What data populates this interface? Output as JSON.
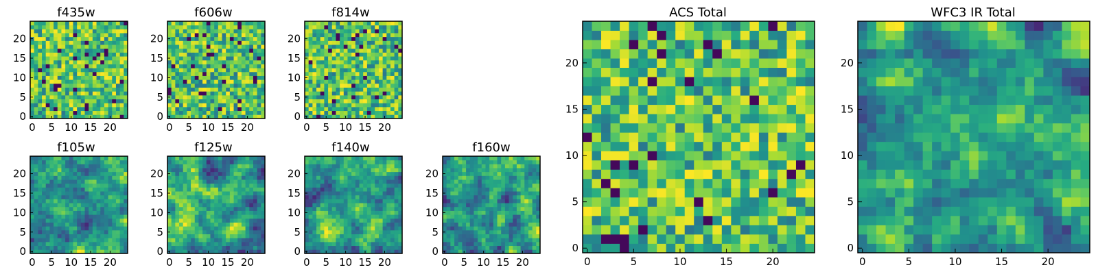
{
  "colormap": "viridis",
  "frame_color": "#000000",
  "chart_data": [
    {
      "type": "heatmap",
      "name": "f435w",
      "title": "f435w",
      "grid": [
        25,
        25
      ],
      "xlim": [
        -0.5,
        24.5
      ],
      "ylim": [
        -0.5,
        24.5
      ],
      "xticks": [
        "0",
        "5",
        "10",
        "15",
        "20"
      ],
      "yticks": [
        "0",
        "5",
        "10",
        "15",
        "20"
      ],
      "texture": "uniform-noise",
      "seed": 11
    },
    {
      "type": "heatmap",
      "name": "f606w",
      "title": "f606w",
      "grid": [
        25,
        25
      ],
      "xlim": [
        -0.5,
        24.5
      ],
      "ylim": [
        -0.5,
        24.5
      ],
      "xticks": [
        "0",
        "5",
        "10",
        "15",
        "20"
      ],
      "yticks": [
        "0",
        "5",
        "10",
        "15",
        "20"
      ],
      "texture": "uniform-noise",
      "seed": 23
    },
    {
      "type": "heatmap",
      "name": "f814w",
      "title": "f814w",
      "grid": [
        25,
        25
      ],
      "xlim": [
        -0.5,
        24.5
      ],
      "ylim": [
        -0.5,
        24.5
      ],
      "xticks": [
        "0",
        "5",
        "10",
        "15",
        "20"
      ],
      "yticks": [
        "0",
        "5",
        "10",
        "15",
        "20"
      ],
      "texture": "uniform-noise",
      "seed": 37
    },
    {
      "type": "heatmap",
      "name": "f105w",
      "title": "f105w",
      "grid": [
        25,
        25
      ],
      "xlim": [
        -0.5,
        24.5
      ],
      "ylim": [
        -0.5,
        24.5
      ],
      "xticks": [
        "0",
        "5",
        "10",
        "15",
        "20"
      ],
      "yticks": [
        "0",
        "5",
        "10",
        "15",
        "20"
      ],
      "texture": "smooth-noise",
      "seed": 41
    },
    {
      "type": "heatmap",
      "name": "f125w",
      "title": "f125w",
      "grid": [
        25,
        25
      ],
      "xlim": [
        -0.5,
        24.5
      ],
      "ylim": [
        -0.5,
        24.5
      ],
      "xticks": [
        "0",
        "5",
        "10",
        "15",
        "20"
      ],
      "yticks": [
        "0",
        "5",
        "10",
        "15",
        "20"
      ],
      "texture": "smooth-noise",
      "seed": 53
    },
    {
      "type": "heatmap",
      "name": "f140w",
      "title": "f140w",
      "grid": [
        25,
        25
      ],
      "xlim": [
        -0.5,
        24.5
      ],
      "ylim": [
        -0.5,
        24.5
      ],
      "xticks": [
        "0",
        "5",
        "10",
        "15",
        "20"
      ],
      "yticks": [
        "0",
        "5",
        "10",
        "15",
        "20"
      ],
      "texture": "smooth-noise",
      "seed": 67
    },
    {
      "type": "heatmap",
      "name": "f160w",
      "title": "f160w",
      "grid": [
        25,
        25
      ],
      "xlim": [
        -0.5,
        24.5
      ],
      "ylim": [
        -0.5,
        24.5
      ],
      "xticks": [
        "0",
        "5",
        "10",
        "15",
        "20"
      ],
      "yticks": [
        "0",
        "5",
        "10",
        "15",
        "20"
      ],
      "texture": "smooth-noise",
      "seed": 79
    },
    {
      "type": "heatmap",
      "name": "acs-total",
      "title": "ACS Total",
      "grid": [
        25,
        25
      ],
      "xlim": [
        -0.5,
        24.5
      ],
      "ylim": [
        -0.5,
        24.5
      ],
      "xticks": [
        "0",
        "5",
        "10",
        "15",
        "20"
      ],
      "yticks": [
        "0",
        "5",
        "10",
        "15",
        "20"
      ],
      "texture": "uniform-noise",
      "seed": 97
    },
    {
      "type": "heatmap",
      "name": "wfc3-ir-total",
      "title": "WFC3 IR Total",
      "grid": [
        25,
        25
      ],
      "xlim": [
        -0.5,
        24.5
      ],
      "ylim": [
        -0.5,
        24.5
      ],
      "xticks": [
        "0",
        "5",
        "10",
        "15",
        "20"
      ],
      "yticks": [
        "0",
        "5",
        "10",
        "15",
        "20"
      ],
      "texture": "smooth-noise",
      "seed": 113
    }
  ]
}
